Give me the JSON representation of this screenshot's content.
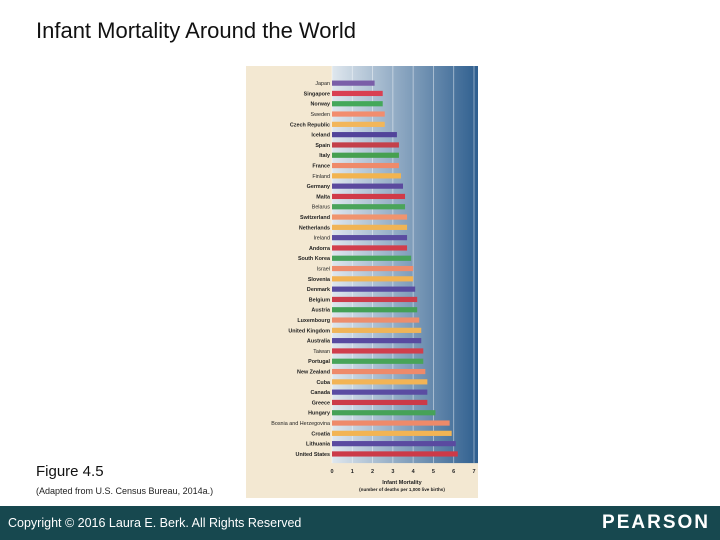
{
  "slide": {
    "title": "Infant Mortality Around the World",
    "figure_label": "Figure 4.5",
    "figure_source": "(Adapted from U.S. Census Bureau, 2014a.)"
  },
  "footer": {
    "copyright": "Copyright © 2016 Laura E. Berk. All Rights Reserved",
    "brand": "PEARSON",
    "background_color": "#17484f"
  },
  "chart_data": {
    "type": "bar",
    "orientation": "horizontal",
    "title": "",
    "xlabel": "Infant Mortality",
    "xlabel_sub": "(number of deaths per 1,000 live births)",
    "ylabel": "",
    "xlim": [
      0,
      7
    ],
    "xticks": [
      0,
      1,
      2,
      3,
      4,
      5,
      6,
      7
    ],
    "grid": true,
    "categories": [
      "Japan",
      "Singapore",
      "Norway",
      "Sweden",
      "Czech Republic",
      "Iceland",
      "Spain",
      "Italy",
      "France",
      "Finland",
      "Germany",
      "Malta",
      "Belarus",
      "Switzerland",
      "Netherlands",
      "Ireland",
      "Andorra",
      "South Korea",
      "Israel",
      "Slovenia",
      "Denmark",
      "Belgium",
      "Austria",
      "Luxembourg",
      "United Kingdom",
      "Australia",
      "Taiwan",
      "Portugal",
      "New Zealand",
      "Cuba",
      "Canada",
      "Greece",
      "Hungary",
      "Bosnia and Herzegovina",
      "Croatia",
      "Lithuania",
      "United States"
    ],
    "values": [
      2.1,
      2.5,
      2.5,
      2.6,
      2.6,
      3.2,
      3.3,
      3.3,
      3.3,
      3.4,
      3.5,
      3.6,
      3.6,
      3.7,
      3.7,
      3.7,
      3.7,
      3.9,
      4.0,
      4.0,
      4.1,
      4.2,
      4.2,
      4.3,
      4.4,
      4.4,
      4.5,
      4.5,
      4.6,
      4.7,
      4.7,
      4.7,
      5.1,
      5.8,
      5.9,
      6.1,
      6.2
    ],
    "bar_colors": [
      "#7a5ea8",
      "#d94052",
      "#44a85a",
      "#f28d6e",
      "#f2b65a",
      "#52449a",
      "#c4404a",
      "#46a050",
      "#ef8a6a",
      "#f2b450",
      "#5b4a9e",
      "#d03a48",
      "#4aa45a",
      "#f0946e",
      "#f0b456",
      "#5a4ca0",
      "#d23e4c",
      "#46a25a",
      "#ee8c6c",
      "#f2b252",
      "#584ba0",
      "#cc3c4a",
      "#44a056",
      "#ec8e6e",
      "#f0b458",
      "#584aa0",
      "#d03e4c",
      "#48a458",
      "#ee8a6a",
      "#f2b456",
      "#5a4ca2",
      "#cc3a48",
      "#46a258",
      "#ee8a6a",
      "#f2b454",
      "#5a4aa0",
      "#cc3a48"
    ],
    "panel_colors": {
      "label_panel": "#f3e8d2",
      "plot_background": "#2f5f8f",
      "plot_fade": "#dfe7ee"
    }
  }
}
